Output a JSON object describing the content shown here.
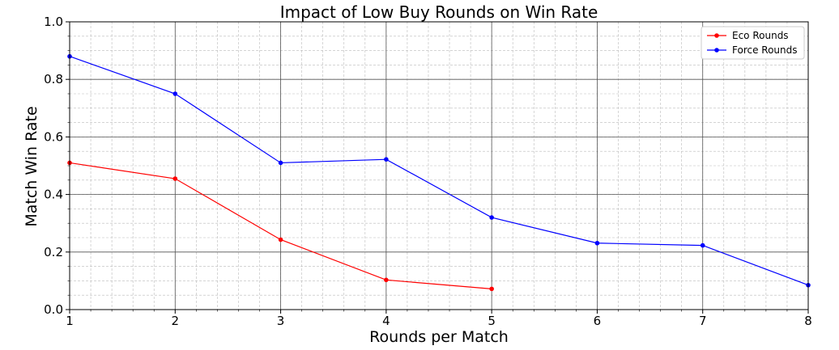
{
  "chart_data": {
    "type": "line",
    "title": "Impact of Low Buy Rounds on Win Rate",
    "xlabel": "Rounds per Match",
    "ylabel": "Match Win Rate",
    "xlim": [
      1,
      8
    ],
    "ylim": [
      0.0,
      1.0
    ],
    "x_ticks": [
      "1",
      "2",
      "3",
      "4",
      "5",
      "6",
      "7",
      "8"
    ],
    "y_ticks": [
      "0.0",
      "0.2",
      "0.4",
      "0.6",
      "0.8",
      "1.0"
    ],
    "grid": true,
    "minor_grid": true,
    "legend_position": "top-right",
    "series": [
      {
        "name": "Eco Rounds",
        "color": "#ff0000",
        "x": [
          1,
          2,
          3,
          4,
          5
        ],
        "y": [
          0.51,
          0.455,
          0.243,
          0.103,
          0.072
        ]
      },
      {
        "name": "Force Rounds",
        "color": "#0000ff",
        "x": [
          1,
          2,
          3,
          4,
          5,
          6,
          7,
          8
        ],
        "y": [
          0.88,
          0.75,
          0.51,
          0.522,
          0.32,
          0.231,
          0.223,
          0.085
        ]
      }
    ]
  }
}
